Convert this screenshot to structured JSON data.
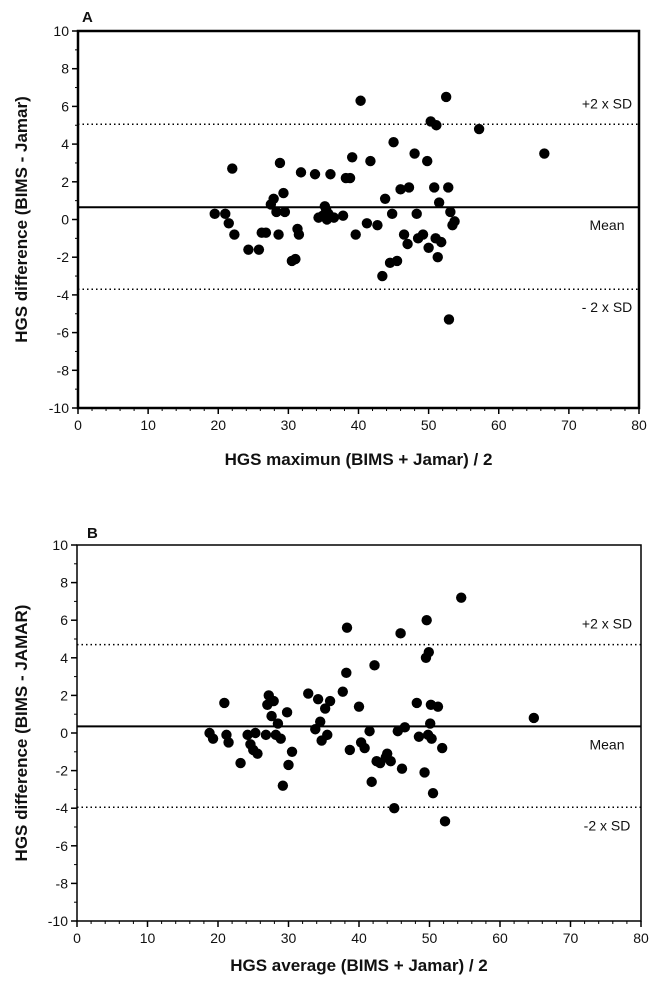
{
  "chart_data": [
    {
      "type": "scatter",
      "panel_label": "A",
      "xlabel": "HGS maximun (BIMS + Jamar) / 2",
      "ylabel": "HGS difference (BIMS - Jamar)",
      "xlim": [
        0,
        80
      ],
      "ylim": [
        -10,
        10
      ],
      "x_ticks": [
        0,
        10,
        20,
        30,
        40,
        50,
        60,
        70,
        80
      ],
      "y_ticks": [
        -10,
        -8,
        -6,
        -4,
        -2,
        0,
        2,
        4,
        6,
        8,
        10
      ],
      "reference_lines": [
        {
          "label": "+2 x SD",
          "value": 5.05,
          "style": "dotted"
        },
        {
          "label": "Mean",
          "value": 0.65,
          "style": "solid"
        },
        {
          "label": "- 2 x SD",
          "value": -3.7,
          "style": "dotted"
        }
      ],
      "points": [
        [
          19.5,
          0.3
        ],
        [
          21.0,
          0.3
        ],
        [
          21.5,
          -0.2
        ],
        [
          22.0,
          2.7
        ],
        [
          22.3,
          -0.8
        ],
        [
          24.3,
          -1.6
        ],
        [
          25.8,
          -1.6
        ],
        [
          26.2,
          -0.7
        ],
        [
          26.8,
          -0.7
        ],
        [
          27.5,
          0.8
        ],
        [
          27.9,
          1.1
        ],
        [
          28.3,
          0.4
        ],
        [
          28.6,
          -0.8
        ],
        [
          28.8,
          3.0
        ],
        [
          29.3,
          1.4
        ],
        [
          29.5,
          0.4
        ],
        [
          30.5,
          -2.2
        ],
        [
          31.0,
          -2.1
        ],
        [
          31.3,
          -0.5
        ],
        [
          31.5,
          -0.8
        ],
        [
          31.8,
          2.5
        ],
        [
          33.8,
          2.4
        ],
        [
          34.3,
          0.1
        ],
        [
          34.9,
          0.2
        ],
        [
          35.2,
          0.7
        ],
        [
          35.4,
          0.5
        ],
        [
          35.5,
          0.0
        ],
        [
          35.7,
          0.3
        ],
        [
          36.0,
          2.4
        ],
        [
          36.5,
          0.1
        ],
        [
          37.8,
          0.2
        ],
        [
          38.2,
          2.2
        ],
        [
          38.8,
          2.2
        ],
        [
          39.1,
          3.3
        ],
        [
          39.6,
          -0.8
        ],
        [
          40.3,
          6.3
        ],
        [
          41.2,
          -0.2
        ],
        [
          41.7,
          3.1
        ],
        [
          42.7,
          -0.3
        ],
        [
          43.4,
          -3.0
        ],
        [
          43.8,
          1.1
        ],
        [
          44.5,
          -2.3
        ],
        [
          44.8,
          0.3
        ],
        [
          45.0,
          4.1
        ],
        [
          45.5,
          -2.2
        ],
        [
          46.0,
          1.6
        ],
        [
          46.5,
          -0.8
        ],
        [
          47.2,
          1.7
        ],
        [
          47.0,
          -1.3
        ],
        [
          48.0,
          3.5
        ],
        [
          48.3,
          0.3
        ],
        [
          48.5,
          -1.0
        ],
        [
          49.2,
          -0.8
        ],
        [
          49.8,
          3.1
        ],
        [
          50.0,
          -1.5
        ],
        [
          50.3,
          5.2
        ],
        [
          50.8,
          1.7
        ],
        [
          51.0,
          -1.0
        ],
        [
          51.1,
          5.0
        ],
        [
          51.3,
          -2.0
        ],
        [
          51.5,
          0.9
        ],
        [
          51.8,
          -1.2
        ],
        [
          52.5,
          6.5
        ],
        [
          52.8,
          1.7
        ],
        [
          52.9,
          -5.3
        ],
        [
          53.1,
          0.4
        ],
        [
          53.4,
          -0.3
        ],
        [
          53.7,
          -0.1
        ],
        [
          57.2,
          4.8
        ],
        [
          66.5,
          3.5
        ]
      ]
    },
    {
      "type": "scatter",
      "panel_label": "B",
      "xlabel": "HGS average (BIMS + Jamar) / 2",
      "ylabel": "HGS difference (BIMS - JAMAR)",
      "xlim": [
        0,
        80
      ],
      "ylim": [
        -10,
        10
      ],
      "x_ticks": [
        0,
        10,
        20,
        30,
        40,
        50,
        60,
        70,
        80
      ],
      "y_ticks": [
        -10,
        -8,
        -6,
        -4,
        -2,
        0,
        2,
        4,
        6,
        8,
        10
      ],
      "reference_lines": [
        {
          "label": "+2 x SD",
          "value": 4.7,
          "style": "dotted"
        },
        {
          "label": "Mean",
          "value": 0.35,
          "style": "solid"
        },
        {
          "label": "-2 x SD",
          "value": -3.95,
          "style": "dotted"
        }
      ],
      "points": [
        [
          18.8,
          0.0
        ],
        [
          19.3,
          -0.3
        ],
        [
          20.9,
          1.6
        ],
        [
          21.2,
          -0.1
        ],
        [
          21.5,
          -0.5
        ],
        [
          23.2,
          -1.6
        ],
        [
          24.2,
          -0.1
        ],
        [
          24.6,
          -0.6
        ],
        [
          25.0,
          -0.9
        ],
        [
          25.3,
          0.0
        ],
        [
          25.6,
          -1.1
        ],
        [
          26.8,
          -0.1
        ],
        [
          27.0,
          1.5
        ],
        [
          27.2,
          2.0
        ],
        [
          27.6,
          0.9
        ],
        [
          27.9,
          1.7
        ],
        [
          28.2,
          -0.1
        ],
        [
          28.5,
          0.5
        ],
        [
          28.9,
          -0.3
        ],
        [
          29.2,
          -2.8
        ],
        [
          29.8,
          1.1
        ],
        [
          30.0,
          -1.7
        ],
        [
          30.5,
          -1.0
        ],
        [
          32.8,
          2.1
        ],
        [
          33.8,
          0.2
        ],
        [
          34.2,
          1.8
        ],
        [
          34.5,
          0.6
        ],
        [
          34.7,
          -0.4
        ],
        [
          35.2,
          1.3
        ],
        [
          35.5,
          -0.1
        ],
        [
          35.9,
          1.7
        ],
        [
          37.7,
          2.2
        ],
        [
          38.3,
          5.6
        ],
        [
          38.2,
          3.2
        ],
        [
          38.7,
          -0.9
        ],
        [
          40.0,
          1.4
        ],
        [
          40.3,
          -0.5
        ],
        [
          40.8,
          -0.8
        ],
        [
          41.5,
          0.1
        ],
        [
          41.8,
          -2.6
        ],
        [
          42.2,
          3.6
        ],
        [
          42.5,
          -1.5
        ],
        [
          43.0,
          -1.6
        ],
        [
          43.8,
          -1.3
        ],
        [
          44.0,
          -1.1
        ],
        [
          44.5,
          -1.5
        ],
        [
          45.0,
          -4.0
        ],
        [
          45.5,
          0.1
        ],
        [
          45.9,
          5.3
        ],
        [
          46.1,
          -1.9
        ],
        [
          46.5,
          0.3
        ],
        [
          48.2,
          1.6
        ],
        [
          48.5,
          -0.2
        ],
        [
          49.3,
          -2.1
        ],
        [
          49.5,
          4.0
        ],
        [
          49.6,
          6.0
        ],
        [
          49.8,
          -0.1
        ],
        [
          49.9,
          4.3
        ],
        [
          50.1,
          0.5
        ],
        [
          50.2,
          1.5
        ],
        [
          50.3,
          -0.3
        ],
        [
          50.5,
          -3.2
        ],
        [
          51.2,
          1.4
        ],
        [
          51.8,
          -0.8
        ],
        [
          52.2,
          -4.7
        ],
        [
          54.5,
          7.2
        ],
        [
          64.8,
          0.8
        ]
      ]
    }
  ]
}
